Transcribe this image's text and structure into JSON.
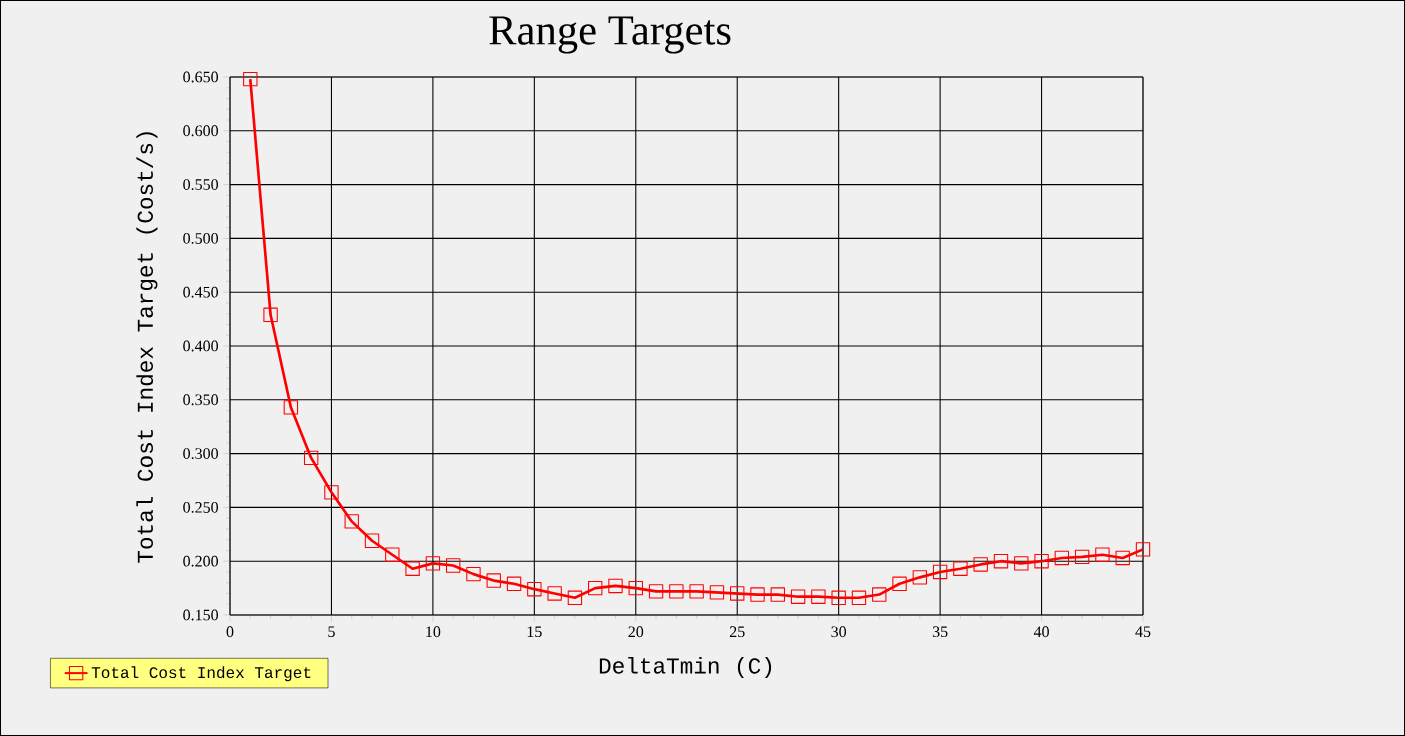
{
  "chart_data": {
    "type": "line",
    "title": "Range Targets",
    "xlabel": "DeltaTmin (C)",
    "ylabel": "Total Cost Index Target (Cost/s)",
    "x": [
      1,
      2,
      3,
      4,
      5,
      6,
      7,
      8,
      9,
      10,
      11,
      12,
      13,
      14,
      15,
      16,
      17,
      18,
      19,
      20,
      21,
      22,
      23,
      24,
      25,
      26,
      27,
      28,
      29,
      30,
      31,
      32,
      33,
      34,
      35,
      36,
      37,
      38,
      39,
      40,
      41,
      42,
      43,
      44,
      45
    ],
    "series": [
      {
        "name": "Total Cost Index Target",
        "color": "#ff0000",
        "values": [
          0.648,
          0.429,
          0.343,
          0.296,
          0.264,
          0.237,
          0.219,
          0.206,
          0.193,
          0.198,
          0.196,
          0.188,
          0.182,
          0.179,
          0.174,
          0.17,
          0.166,
          0.175,
          0.177,
          0.175,
          0.172,
          0.172,
          0.172,
          0.171,
          0.17,
          0.169,
          0.169,
          0.167,
          0.167,
          0.166,
          0.166,
          0.169,
          0.179,
          0.185,
          0.19,
          0.193,
          0.197,
          0.2,
          0.198,
          0.2,
          0.203,
          0.204,
          0.206,
          0.203,
          0.211
        ]
      }
    ],
    "xlim": [
      0,
      45
    ],
    "xticks": [
      0,
      5,
      10,
      15,
      20,
      25,
      30,
      35,
      40,
      45
    ],
    "ylim": [
      0.15,
      0.65
    ],
    "yticks": [
      {
        "value": 0.15,
        "label": "0.150"
      },
      {
        "value": 0.2,
        "label": "0.200"
      },
      {
        "value": 0.25,
        "label": "0.250"
      },
      {
        "value": 0.3,
        "label": "0.300"
      },
      {
        "value": 0.35,
        "label": "0.350"
      },
      {
        "value": 0.4,
        "label": "0.400"
      },
      {
        "value": 0.45,
        "label": "0.450"
      },
      {
        "value": 0.5,
        "label": "0.500"
      },
      {
        "value": 0.55,
        "label": "0.550"
      },
      {
        "value": 0.6,
        "label": "0.600"
      },
      {
        "value": 0.65,
        "label": "0.650"
      }
    ],
    "grid": true,
    "legend": "bottom left",
    "marker": "square",
    "line_style": "solid"
  }
}
